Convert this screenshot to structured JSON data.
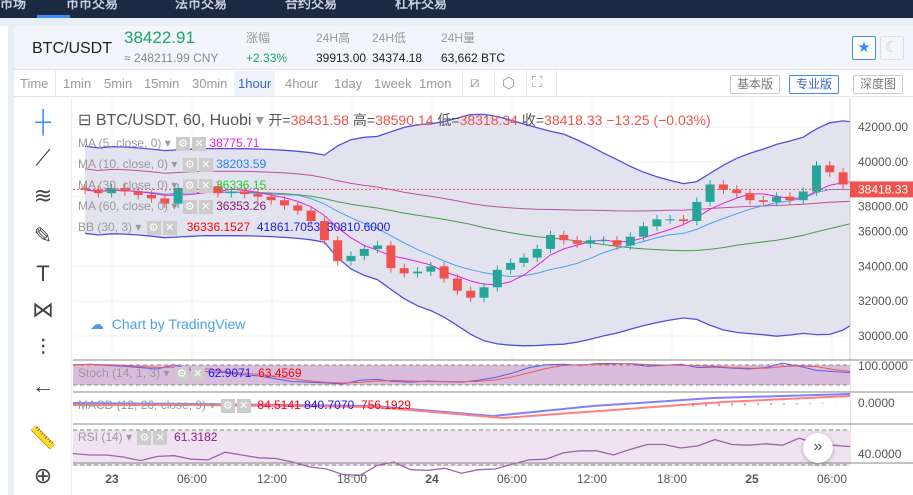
{
  "nav": {
    "items": [
      "市场",
      "币币交易",
      "法币交易",
      "合约交易",
      "杠杆交易"
    ]
  },
  "header": {
    "symbol": "BTC/USDT",
    "price": "38422.91",
    "cny": "≈ 248211.99 CNY",
    "stats": [
      {
        "label": "涨幅",
        "value": "+2.33%",
        "color": "#1aa56b"
      },
      {
        "label": "24H高",
        "value": "39913.00"
      },
      {
        "label": "24H低",
        "value": "34374.18"
      },
      {
        "label": "24H量",
        "value": "63,662 BTC"
      }
    ],
    "star_icon": "star-icon",
    "theme_icon": "moon-icon"
  },
  "toolbar": {
    "intervals": [
      "Time",
      "1min",
      "5min",
      "15min",
      "30min",
      "1hour",
      "4hour",
      "1day",
      "1week",
      "1mon"
    ],
    "active": "1hour",
    "icons": [
      "candle-type-icon",
      "settings-icon",
      "fullscreen-icon"
    ],
    "versions": [
      "基本版",
      "专业版",
      "深度图"
    ],
    "active_version": "专业版"
  },
  "tools": [
    "crosshair-icon",
    "trend-line-icon",
    "fib-icon",
    "brush-icon",
    "text-icon",
    "pattern-icon",
    "measure-icon",
    "back-arrow-icon",
    "ruler-icon",
    "zoom-icon"
  ],
  "legend": {
    "title": "BTC/USDT, 60, Huobi",
    "open_label": "开=",
    "open": "38431.58",
    "high_label": "高=",
    "high": "38590.14",
    "low_label": "低=",
    "low": "38318.34",
    "close_label": "收=",
    "close": "38418.33",
    "change": "−13.25 (−0.03%)",
    "ma5": {
      "label": "MA (5, close, 0)",
      "value": "38775.71",
      "color": "#e91ee0"
    },
    "ma10": {
      "label": "MA (10, close, 0)",
      "value": "38203.59",
      "color": "#2a7ef5"
    },
    "ma30": {
      "label": "MA (30, close, 0)",
      "value": "36336.15",
      "color": "#1bd32b"
    },
    "ma60": {
      "label": "MA (60, close, 0)",
      "value": "36353.26",
      "color": "#8b1a6e"
    },
    "bb": {
      "label": "BB (30, 3)",
      "v1": "36336.1527",
      "v2": "41861.7053",
      "v3": "30810.6000"
    }
  },
  "watermark": "Chart by TradingView",
  "price_axis": {
    "ticks": [
      "42000.00",
      "40000.00",
      "38000.00",
      "36000.00",
      "34000.00",
      "32000.00",
      "30000.00"
    ],
    "last": "38418.33"
  },
  "stoch": {
    "label": "Stoch (14, 1, 3)",
    "k": "62.9071",
    "d": "63.4569",
    "axis": "100.0000"
  },
  "macd": {
    "label": "MACD (12, 26, close, 9)",
    "v1": "84.5141",
    "v2": "840.7070",
    "v3": "756.1929",
    "axis": "0.0000"
  },
  "rsi": {
    "label": "RSI (14)",
    "value": "61.3182",
    "axis": "40.0000"
  },
  "time_axis": [
    "23",
    "06:00",
    "12:00",
    "18:00",
    "24",
    "06:00",
    "12:00",
    "18:00",
    "25",
    "06:00"
  ],
  "chart_data": {
    "type": "candlestick",
    "interval": "1hour",
    "closes": [
      38400,
      38200,
      38500,
      38300,
      38100,
      37900,
      37600,
      38500,
      38550,
      38600,
      38200,
      38300,
      38150,
      38000,
      37800,
      37500,
      37200,
      36600,
      35500,
      34300,
      34600,
      35000,
      35200,
      33900,
      33600,
      33700,
      34000,
      33300,
      32600,
      32200,
      32800,
      33800,
      34200,
      34500,
      35000,
      35800,
      35500,
      35300,
      35500,
      35500,
      35200,
      35700,
      36300,
      36700,
      36700,
      36600,
      37700,
      38700,
      38400,
      38200,
      37800,
      37700,
      38000,
      37800,
      38300,
      39800,
      39400,
      38700,
      38418
    ],
    "up_color": "#26a69a",
    "down_color": "#ef5350",
    "stoch_k": [
      90,
      92,
      88,
      85,
      80,
      75,
      90,
      70,
      65,
      62,
      55,
      50,
      40,
      30,
      28,
      25,
      22,
      35,
      38,
      30,
      28,
      32,
      30,
      28,
      35,
      45,
      60,
      80,
      90,
      92,
      88,
      94,
      95,
      93,
      85,
      88,
      92,
      80,
      82,
      78,
      75,
      80,
      96,
      85,
      70,
      66,
      62
    ],
    "rsi": [
      52,
      50,
      50,
      47,
      42,
      48,
      49,
      44,
      43,
      54,
      50,
      46,
      45,
      40,
      33,
      30,
      22,
      21,
      35,
      40,
      29,
      28,
      31,
      24,
      29,
      30,
      37,
      43,
      44,
      53,
      56,
      56,
      50,
      58,
      65,
      65,
      60,
      63,
      72,
      65,
      64,
      66,
      64,
      74,
      66,
      64,
      62
    ]
  }
}
